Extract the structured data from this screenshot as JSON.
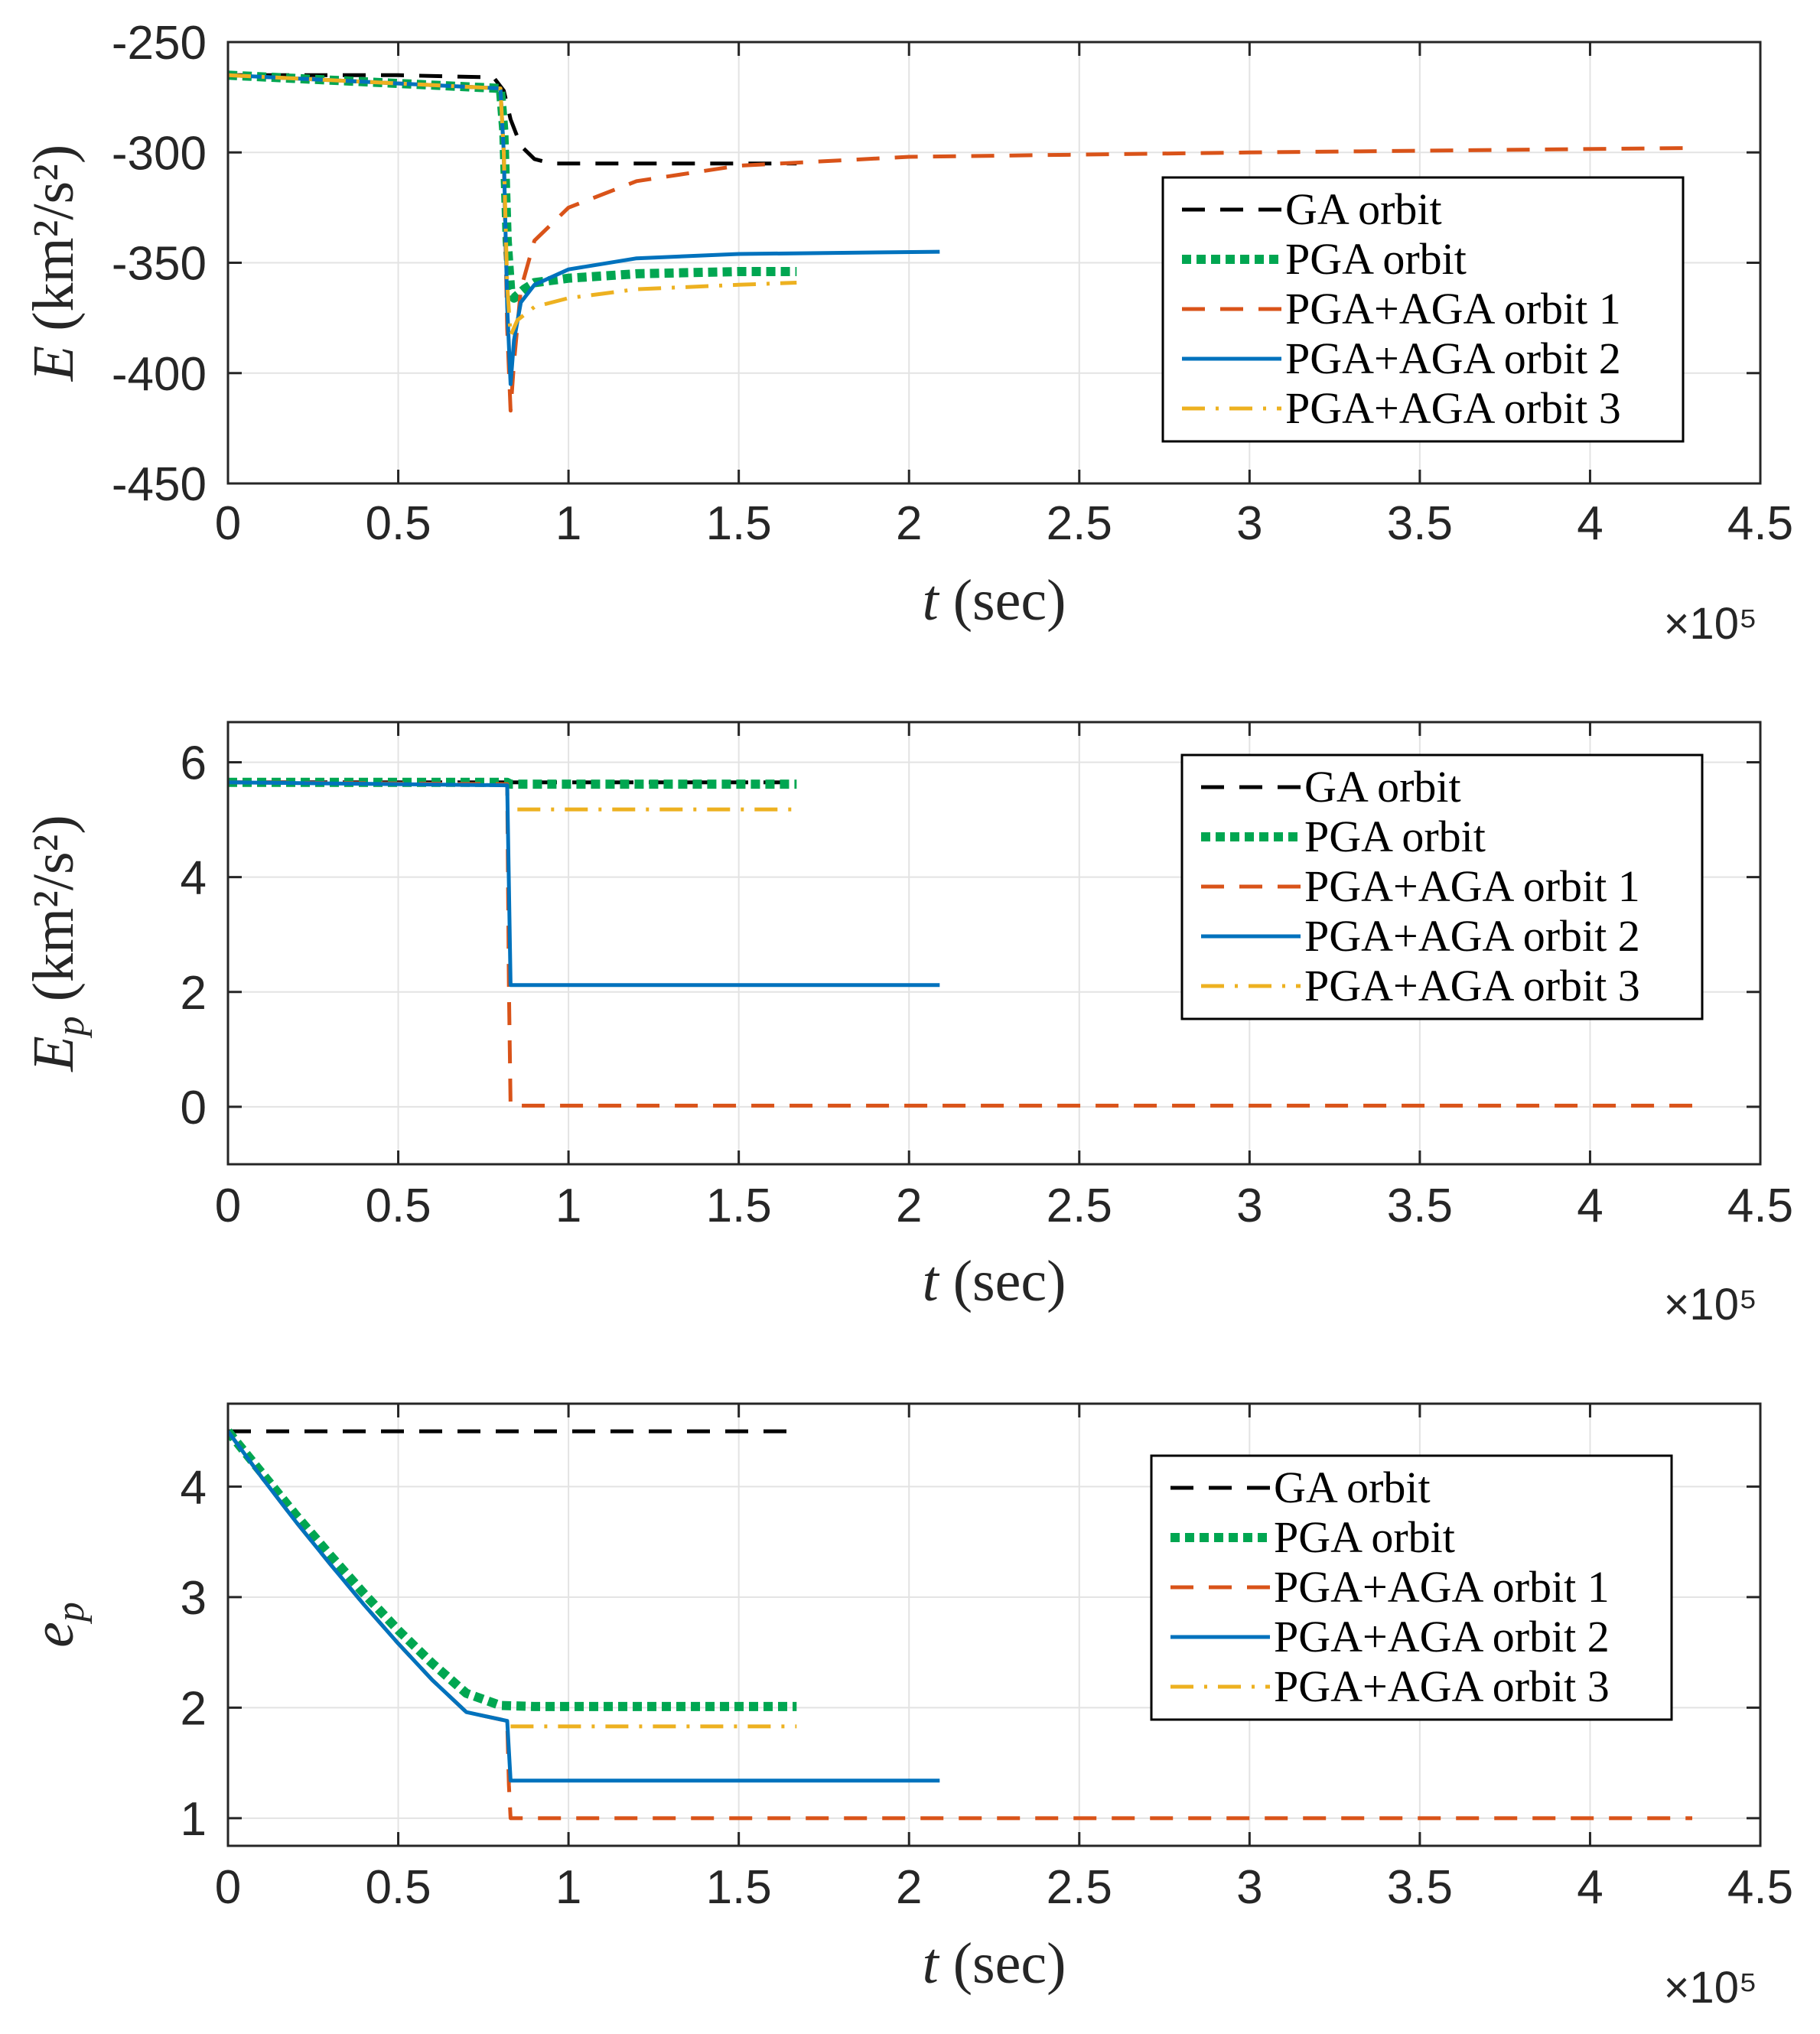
{
  "chart_data": [
    {
      "type": "line",
      "id": "energy",
      "ylabel_parts": {
        "symbol": "E",
        "units": "(km²/s²)"
      },
      "xlabel_parts": {
        "symbol": "t",
        "units": "(sec)"
      },
      "x_multiplier": "×10⁵",
      "xlim": [
        0,
        4.5
      ],
      "ylim": [
        -450,
        -250
      ],
      "xticks": [
        0,
        0.5,
        1,
        1.5,
        2,
        2.5,
        3,
        3.5,
        4,
        4.5
      ],
      "xtick_labels": [
        "0",
        "0.5",
        "1",
        "1.5",
        "2",
        "2.5",
        "3",
        "3.5",
        "4",
        "4.5"
      ],
      "yticks": [
        -250,
        -300,
        -350,
        -400,
        -450
      ],
      "ytick_labels": [
        "-250",
        "-300",
        "-350",
        "-400",
        "-450"
      ],
      "grid": true,
      "legend_position": "top-right",
      "series": [
        {
          "name": "GA orbit",
          "legend_label": "GA orbit",
          "color": "#000000",
          "style": "dashed",
          "x": [
            0,
            0.5,
            0.78,
            0.81,
            0.83,
            0.86,
            0.9,
            0.95,
            1.0,
            1.2,
            1.5,
            1.67
          ],
          "y": [
            -265,
            -265,
            -266,
            -272,
            -285,
            -297,
            -303,
            -305,
            -305,
            -305,
            -305,
            -305
          ]
        },
        {
          "name": "PGA orbit",
          "legend_label": "PGA orbit",
          "color": "#00a651",
          "style": "dotted",
          "x": [
            0,
            0.4,
            0.8,
            0.81,
            0.82,
            0.83,
            0.84,
            0.87,
            0.9,
            1.0,
            1.2,
            1.5,
            1.67
          ],
          "y": [
            -265,
            -268,
            -271,
            -290,
            -340,
            -362,
            -366,
            -362,
            -359,
            -357,
            -355,
            -354,
            -354
          ]
        },
        {
          "name": "PGA+AGA orbit 1",
          "legend_label": "PGA+AGA orbit 1",
          "color": "#d95319",
          "style": "dashed",
          "x": [
            0,
            0.4,
            0.8,
            0.81,
            0.82,
            0.83,
            0.84,
            0.86,
            0.9,
            1.0,
            1.2,
            1.5,
            2.0,
            3.0,
            4.3
          ],
          "y": [
            -265,
            -268,
            -271,
            -300,
            -380,
            -417,
            -395,
            -362,
            -340,
            -325,
            -313,
            -306,
            -302,
            -300,
            -298
          ]
        },
        {
          "name": "PGA+AGA orbit 2",
          "legend_label": "PGA+AGA orbit 2",
          "color": "#0072bd",
          "style": "solid",
          "x": [
            0,
            0.4,
            0.8,
            0.81,
            0.82,
            0.83,
            0.84,
            0.86,
            0.9,
            1.0,
            1.2,
            1.5,
            2.09
          ],
          "y": [
            -265,
            -268,
            -271,
            -300,
            -370,
            -405,
            -385,
            -368,
            -360,
            -353,
            -348,
            -346,
            -345
          ]
        },
        {
          "name": "PGA+AGA orbit 3",
          "legend_label": "PGA+AGA orbit 3",
          "color": "#edb120",
          "style": "dashdot",
          "x": [
            0,
            0.4,
            0.8,
            0.81,
            0.82,
            0.83,
            0.85,
            0.9,
            1.0,
            1.2,
            1.5,
            1.67
          ],
          "y": [
            -265,
            -268,
            -271,
            -300,
            -360,
            -383,
            -376,
            -370,
            -366,
            -362,
            -360,
            -359
          ]
        }
      ]
    },
    {
      "type": "line",
      "id": "plane-energy",
      "ylabel_parts": {
        "symbol": "E",
        "subscript": "p",
        "units": "(km²/s²)"
      },
      "xlabel_parts": {
        "symbol": "t",
        "units": "(sec)"
      },
      "x_multiplier": "×10⁵",
      "xlim": [
        0,
        4.5
      ],
      "ylim": [
        -1,
        6.7
      ],
      "xticks": [
        0,
        0.5,
        1,
        1.5,
        2,
        2.5,
        3,
        3.5,
        4,
        4.5
      ],
      "xtick_labels": [
        "0",
        "0.5",
        "1",
        "1.5",
        "2",
        "2.5",
        "3",
        "3.5",
        "4",
        "4.5"
      ],
      "yticks": [
        6,
        4,
        2,
        0
      ],
      "ytick_labels": [
        "6",
        "4",
        "2",
        "0"
      ],
      "grid": true,
      "legend_position": "top-right",
      "series": [
        {
          "name": "GA orbit",
          "legend_label": "GA orbit",
          "color": "#000000",
          "style": "dashed",
          "x": [
            0,
            1.67
          ],
          "y": [
            5.65,
            5.65
          ]
        },
        {
          "name": "PGA orbit",
          "legend_label": "PGA orbit",
          "color": "#00a651",
          "style": "dotted",
          "x": [
            0,
            0.82,
            0.83,
            1.67
          ],
          "y": [
            5.65,
            5.65,
            5.62,
            5.62
          ]
        },
        {
          "name": "PGA+AGA orbit 1",
          "legend_label": "PGA+AGA orbit 1",
          "color": "#d95319",
          "style": "dashed",
          "x": [
            0,
            0.82,
            0.825,
            0.83,
            4.3
          ],
          "y": [
            5.65,
            5.62,
            2.1,
            0.02,
            0.02
          ]
        },
        {
          "name": "PGA+AGA orbit 2",
          "legend_label": "PGA+AGA orbit 2",
          "color": "#0072bd",
          "style": "solid",
          "x": [
            0,
            0.82,
            0.83,
            2.09
          ],
          "y": [
            5.65,
            5.6,
            2.12,
            2.12
          ]
        },
        {
          "name": "PGA+AGA orbit 3",
          "legend_label": "PGA+AGA orbit 3",
          "color": "#edb120",
          "style": "dashdot",
          "x": [
            0.85,
            1.67
          ],
          "y": [
            5.18,
            5.18
          ]
        }
      ]
    },
    {
      "type": "line",
      "id": "plane-eccentricity",
      "ylabel_parts": {
        "symbol": "e",
        "subscript": "p",
        "units": ""
      },
      "xlabel_parts": {
        "symbol": "t",
        "units": "(sec)"
      },
      "x_multiplier": "×10⁵",
      "xlim": [
        0,
        4.5
      ],
      "ylim": [
        0.75,
        4.75
      ],
      "xticks": [
        0,
        0.5,
        1,
        1.5,
        2,
        2.5,
        3,
        3.5,
        4,
        4.5
      ],
      "xtick_labels": [
        "0",
        "0.5",
        "1",
        "1.5",
        "2",
        "2.5",
        "3",
        "3.5",
        "4",
        "4.5"
      ],
      "yticks": [
        4,
        3,
        2,
        1
      ],
      "ytick_labels": [
        "4",
        "3",
        "2",
        "1"
      ],
      "grid": true,
      "legend_position": "top-right",
      "series": [
        {
          "name": "GA orbit",
          "legend_label": "GA orbit",
          "color": "#000000",
          "style": "dashed",
          "x": [
            0,
            1.67
          ],
          "y": [
            4.5,
            4.5
          ]
        },
        {
          "name": "PGA orbit",
          "legend_label": "PGA orbit",
          "color": "#00a651",
          "style": "dotted",
          "x": [
            0,
            0.1,
            0.2,
            0.3,
            0.4,
            0.5,
            0.6,
            0.7,
            0.8,
            0.9,
            1.2,
            1.67
          ],
          "y": [
            4.5,
            4.12,
            3.74,
            3.38,
            3.03,
            2.7,
            2.4,
            2.13,
            2.02,
            2.01,
            2.01,
            2.01
          ]
        },
        {
          "name": "PGA+AGA orbit 1",
          "legend_label": "PGA+AGA orbit 1",
          "color": "#d95319",
          "style": "dashed",
          "x": [
            0,
            0.1,
            0.2,
            0.3,
            0.4,
            0.5,
            0.6,
            0.7,
            0.82,
            0.825,
            0.83,
            4.3
          ],
          "y": [
            4.5,
            4.08,
            3.68,
            3.3,
            2.93,
            2.58,
            2.25,
            1.96,
            1.88,
            1.3,
            1.0,
            1.0
          ]
        },
        {
          "name": "PGA+AGA orbit 2",
          "legend_label": "PGA+AGA orbit 2",
          "color": "#0072bd",
          "style": "solid",
          "x": [
            0,
            0.1,
            0.2,
            0.3,
            0.4,
            0.5,
            0.6,
            0.7,
            0.82,
            0.83,
            2.09
          ],
          "y": [
            4.5,
            4.08,
            3.68,
            3.3,
            2.93,
            2.58,
            2.25,
            1.96,
            1.88,
            1.34,
            1.34
          ]
        },
        {
          "name": "PGA+AGA orbit 3",
          "legend_label": "PGA+AGA orbit 3",
          "color": "#edb120",
          "style": "dashdot",
          "x": [
            0.83,
            1.67
          ],
          "y": [
            1.83,
            1.83
          ]
        }
      ]
    }
  ]
}
